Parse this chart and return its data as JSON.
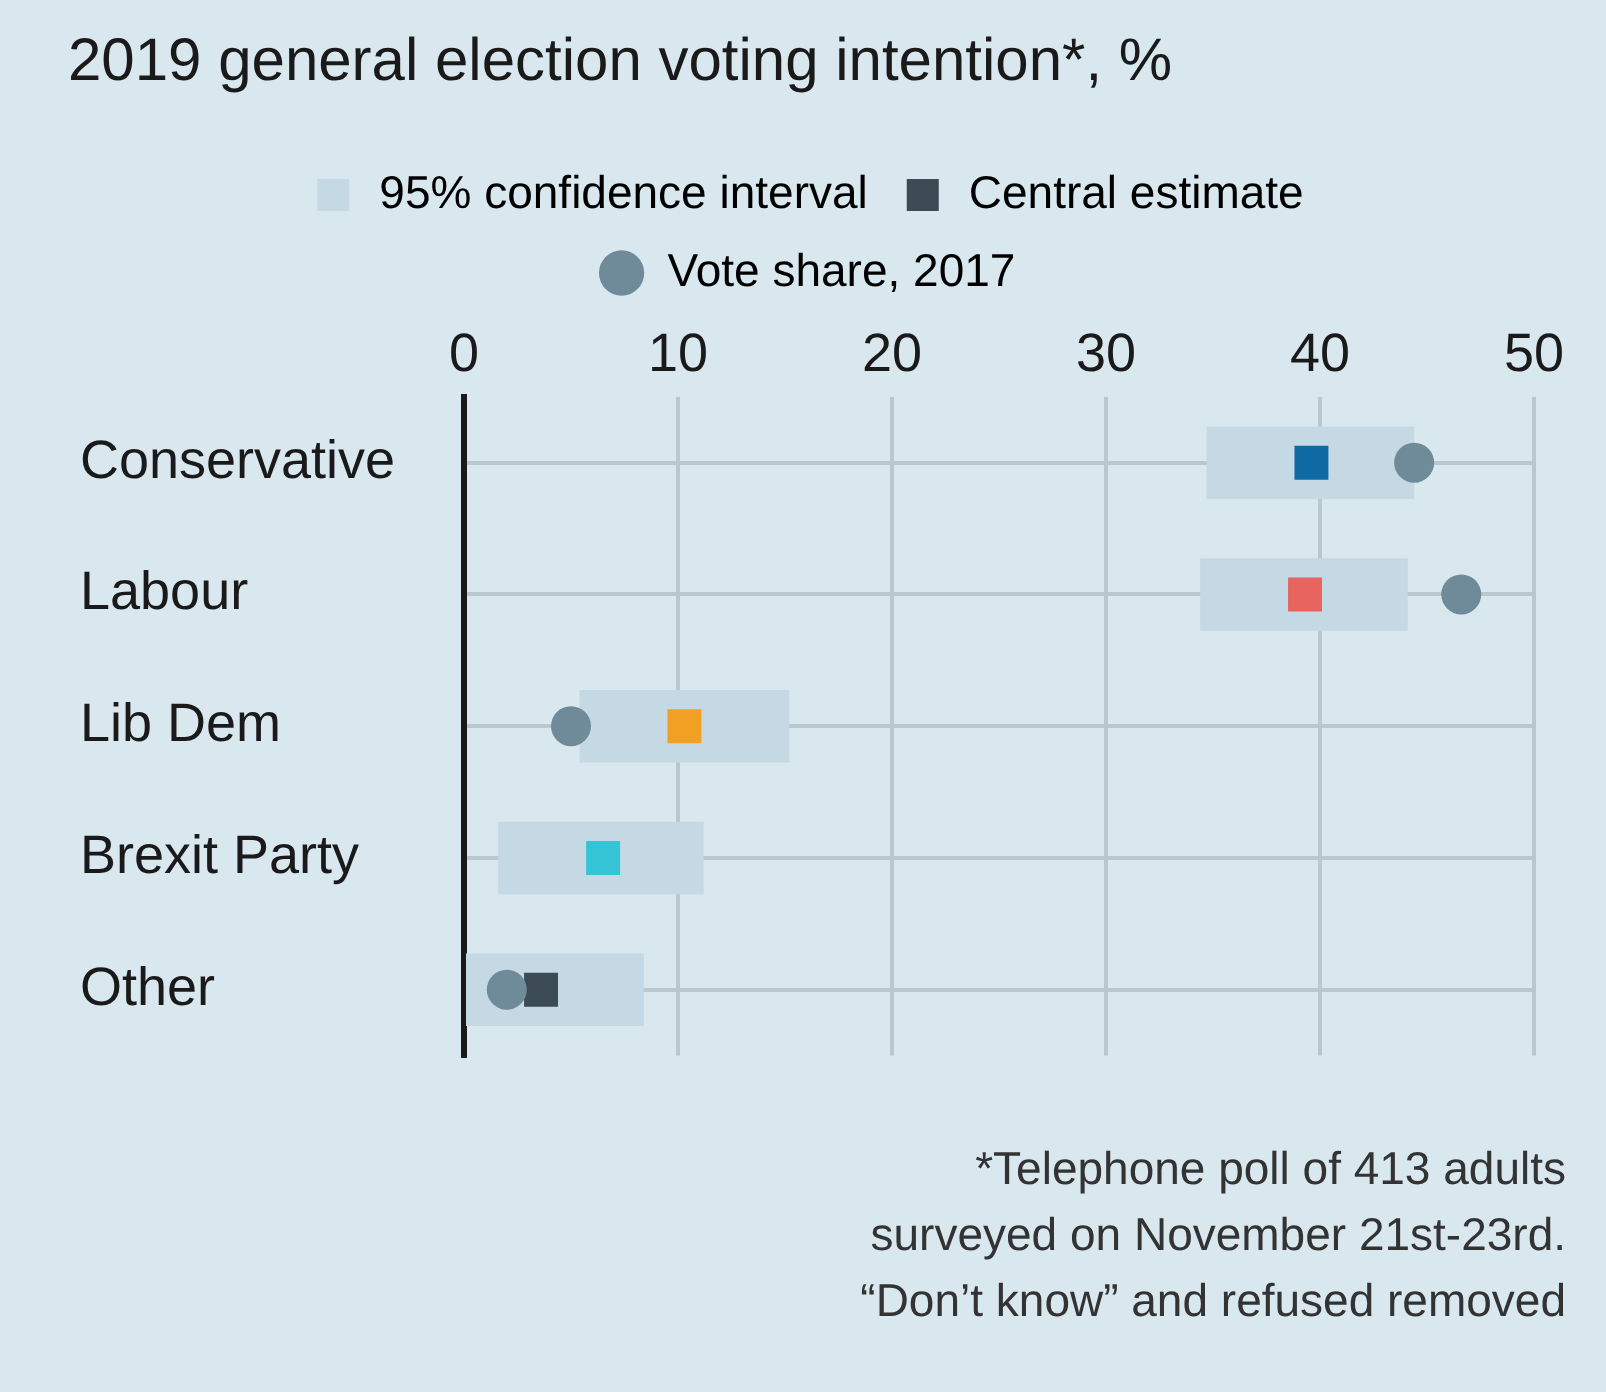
{
  "chart_data": {
    "type": "bar",
    "orientation": "horizontal",
    "title": "2019 general election voting intention*, %",
    "categories": [
      "Conservative",
      "Labour",
      "Lib Dem",
      "Brexit Party",
      "Other"
    ],
    "series": [
      {
        "name": "95% confidence interval",
        "type": "bar",
        "color": "#c4d9e4",
        "base": [
          34.7,
          34.4,
          5.4,
          1.6,
          0
        ],
        "values": [
          9.7,
          9.7,
          9.8,
          9.6,
          8.4
        ]
      },
      {
        "name": "Central estimate",
        "type": "scatter",
        "marker": "square",
        "colors": [
          "#106aa3",
          "#e8645f",
          "#f2a023",
          "#35c3d6",
          "#3c4a53"
        ],
        "values": [
          39.6,
          39.3,
          10.3,
          6.5,
          3.6
        ]
      },
      {
        "name": "Vote share, 2017",
        "type": "scatter",
        "marker": "circle",
        "color": "#6f8b99",
        "values": [
          44.4,
          46.6,
          5.0,
          null,
          2.0
        ]
      }
    ],
    "xlim": [
      0,
      50
    ],
    "xticks": [
      0,
      10,
      20,
      30,
      40,
      50
    ],
    "grid": true,
    "legend": "top",
    "annotations": [
      "*Telephone poll of 413 adults\nsurveyed on November 21st-23rd.\n“Don’t know” and refused removed"
    ]
  }
}
